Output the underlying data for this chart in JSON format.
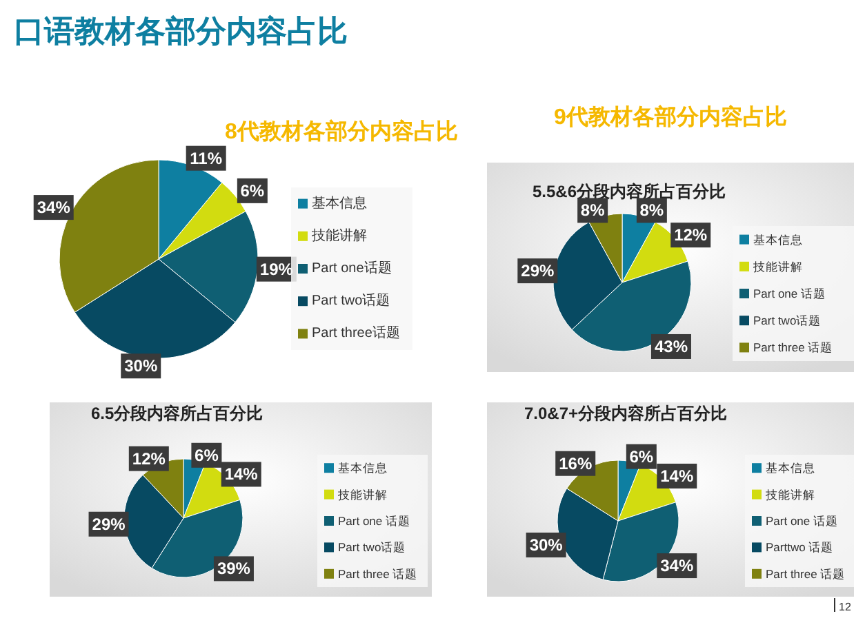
{
  "chart_data": [
    {
      "type": "pie",
      "title": "8代教材各部分内容占比",
      "annotations": [
        "口语教材各部分内容占比"
      ],
      "categories": [
        "基本信息",
        "技能讲解",
        "Part one话题",
        "Part two话题",
        "Part three话题"
      ],
      "values": [
        11,
        6,
        19,
        30,
        34
      ],
      "value_labels": [
        "11%",
        "6%",
        "19%",
        "30%",
        "34%"
      ],
      "colors": [
        "#0e7fa1",
        "#d2dc10",
        "#0f5f73",
        "#074a62",
        "#7f8110"
      ],
      "legend": "right"
    },
    {
      "type": "pie",
      "subtitle": "9代教材各部分内容占比",
      "title": "5.5&6分段内容所占百分比",
      "categories": [
        "基本信息",
        "技能讲解",
        "Part one 话题",
        "Part two话题",
        "Part three 话题"
      ],
      "values": [
        8,
        12,
        43,
        29,
        8
      ],
      "value_labels": [
        "8%",
        "12%",
        "43%",
        "29%",
        "8%"
      ],
      "colors": [
        "#0e7fa1",
        "#d2dc10",
        "#0f5f73",
        "#074a62",
        "#7f8110"
      ],
      "legend": "right"
    },
    {
      "type": "pie",
      "title": "6.5分段内容所占百分比",
      "categories": [
        "基本信息",
        "技能讲解",
        "Part one 话题",
        "Part two话题",
        "Part three 话题"
      ],
      "values": [
        6,
        14,
        39,
        29,
        12
      ],
      "value_labels": [
        "6%",
        "14%",
        "39%",
        "29%",
        "12%"
      ],
      "colors": [
        "#0e7fa1",
        "#d2dc10",
        "#0f5f73",
        "#074a62",
        "#7f8110"
      ],
      "legend": "right"
    },
    {
      "type": "pie",
      "title": "7.0&7+分段内容所占百分比",
      "annotations": [
        "12"
      ],
      "categories": [
        "基本信息",
        "技能讲解",
        "Part one 话题",
        "Parttwo 话题",
        "Part three 话题"
      ],
      "values": [
        6,
        14,
        34,
        30,
        16
      ],
      "value_labels": [
        "6%",
        "14%",
        "34%",
        "30%",
        "16%"
      ],
      "colors": [
        "#0e7fa1",
        "#d2dc10",
        "#0f5f73",
        "#074a62",
        "#7f8110"
      ],
      "legend": "right"
    }
  ]
}
